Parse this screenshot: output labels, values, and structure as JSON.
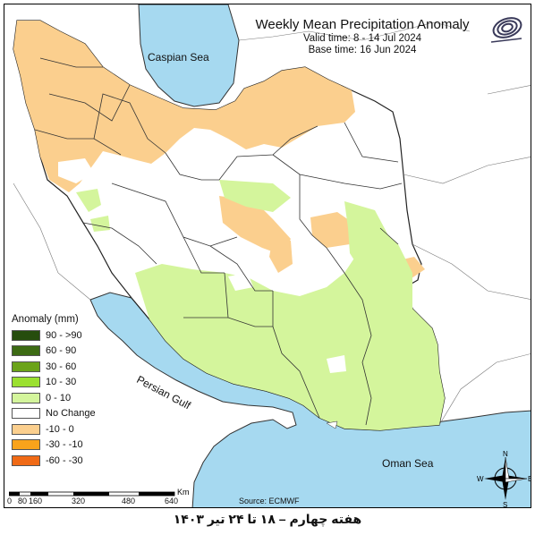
{
  "title": {
    "main": "Weekly Mean Precipitation Anomaly",
    "valid": "Valid time: 8 - 14 Jul 2024",
    "base": "Base time: 16 Jun 2024"
  },
  "labels": {
    "caspian": "Caspian Sea",
    "persian_gulf": "Persian Gulf",
    "oman_sea": "Oman Sea"
  },
  "legend": {
    "title": "Anomaly (mm)",
    "items": [
      {
        "label": "90 - >90",
        "color": "#264d0d"
      },
      {
        "label": "60 - 90",
        "color": "#3d6b14"
      },
      {
        "label": "30 - 60",
        "color": "#6ba319"
      },
      {
        "label": "10 - 30",
        "color": "#9be030"
      },
      {
        "label": "0 - 10",
        "color": "#d4f59c"
      },
      {
        "label": "No Change",
        "color": "#ffffff"
      },
      {
        "label": "-10 - 0",
        "color": "#fbcf8e"
      },
      {
        "label": "-30 - -10",
        "color": "#f9a31b"
      },
      {
        "label": "-60 - -30",
        "color": "#f06a16"
      }
    ]
  },
  "scale": {
    "unit": "Km",
    "ticks": [
      "0",
      "80",
      "160",
      "320",
      "480",
      "640"
    ]
  },
  "source": "Source: ECMWF",
  "compass": {
    "n": "N",
    "s": "S",
    "e": "E",
    "w": "W"
  },
  "footer": "هفته چهارم – ۱۸ تا ۲۴ تیر ۱۴۰۳",
  "colors": {
    "sea": "#a6d9f0",
    "ocean_border": "#3a3a3a",
    "land_out": "#ffffff"
  }
}
